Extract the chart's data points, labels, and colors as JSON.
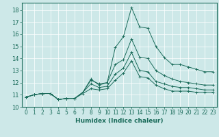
{
  "title": "",
  "xlabel": "Humidex (Indice chaleur)",
  "ylabel": "",
  "bg_color": "#cde8e8",
  "line_color": "#1a6b5a",
  "xlim": [
    -0.5,
    23.5
  ],
  "ylim": [
    10,
    18.6
  ],
  "yticks": [
    10,
    11,
    12,
    13,
    14,
    15,
    16,
    17,
    18
  ],
  "xticks": [
    0,
    1,
    2,
    3,
    4,
    5,
    6,
    7,
    8,
    9,
    10,
    11,
    12,
    13,
    14,
    15,
    16,
    17,
    18,
    19,
    20,
    21,
    22,
    23
  ],
  "lines": [
    {
      "x": [
        0,
        1,
        2,
        3,
        4,
        5,
        6,
        7,
        8,
        9,
        10,
        11,
        12,
        13,
        14,
        15,
        16,
        17,
        18,
        19,
        20,
        21,
        22,
        23
      ],
      "y": [
        10.8,
        11.0,
        11.1,
        11.1,
        10.6,
        10.7,
        10.7,
        11.2,
        12.3,
        11.8,
        12.0,
        14.9,
        15.8,
        18.2,
        16.6,
        16.5,
        15.0,
        14.1,
        13.5,
        13.5,
        13.3,
        13.1,
        12.9,
        12.9
      ]
    },
    {
      "x": [
        0,
        1,
        2,
        3,
        4,
        5,
        6,
        7,
        8,
        9,
        10,
        11,
        12,
        13,
        14,
        15,
        16,
        17,
        18,
        19,
        20,
        21,
        22,
        23
      ],
      "y": [
        10.8,
        11.0,
        11.1,
        11.1,
        10.6,
        10.7,
        10.7,
        11.2,
        12.2,
        11.9,
        12.0,
        13.5,
        13.9,
        15.6,
        14.1,
        14.0,
        13.0,
        12.6,
        12.3,
        12.1,
        12.0,
        11.9,
        11.8,
        11.8
      ]
    },
    {
      "x": [
        0,
        1,
        2,
        3,
        4,
        5,
        6,
        7,
        8,
        9,
        10,
        11,
        12,
        13,
        14,
        15,
        16,
        17,
        18,
        19,
        20,
        21,
        22,
        23
      ],
      "y": [
        10.8,
        11.0,
        11.1,
        11.1,
        10.6,
        10.7,
        10.7,
        11.2,
        11.9,
        11.6,
        11.7,
        12.7,
        13.2,
        14.5,
        13.0,
        12.9,
        12.1,
        11.9,
        11.7,
        11.6,
        11.6,
        11.5,
        11.4,
        11.4
      ]
    },
    {
      "x": [
        0,
        1,
        2,
        3,
        4,
        5,
        6,
        7,
        8,
        9,
        10,
        11,
        12,
        13,
        14,
        15,
        16,
        17,
        18,
        19,
        20,
        21,
        22,
        23
      ],
      "y": [
        10.8,
        11.0,
        11.1,
        11.1,
        10.6,
        10.7,
        10.7,
        11.1,
        11.5,
        11.4,
        11.5,
        12.2,
        12.8,
        13.8,
        12.5,
        12.4,
        11.8,
        11.5,
        11.3,
        11.3,
        11.3,
        11.2,
        11.2,
        11.2
      ]
    }
  ],
  "xlabel_fontsize": 6.5,
  "tick_fontsize": 5.5,
  "ytick_fontsize": 6.0
}
